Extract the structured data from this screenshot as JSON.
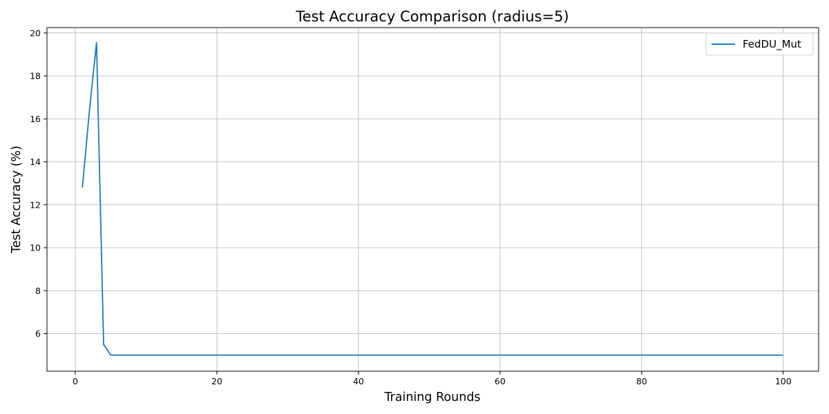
{
  "chart_data": {
    "type": "line",
    "title": "Test Accuracy Comparison (radius=5)",
    "xlabel": "Training Rounds",
    "ylabel": "Test Accuracy (%)",
    "xlim": [
      -4,
      105
    ],
    "ylim": [
      4.25,
      20.25
    ],
    "xticks": [
      0,
      20,
      40,
      60,
      80,
      100
    ],
    "yticks": [
      6,
      8,
      10,
      12,
      14,
      16,
      18,
      20
    ],
    "grid": true,
    "legend_position": "top-right",
    "series": [
      {
        "name": "FedDU_Mut",
        "color": "#1f77b4",
        "points": [
          [
            1,
            12.8
          ],
          [
            2,
            16.4
          ],
          [
            3,
            19.55
          ],
          [
            4,
            5.5
          ],
          [
            5,
            5.0
          ],
          [
            100,
            5.0
          ]
        ]
      }
    ]
  }
}
